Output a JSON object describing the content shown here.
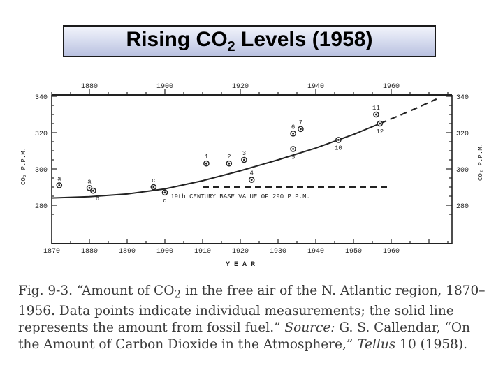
{
  "slide": {
    "title_main": "Rising CO",
    "title_sub": "2",
    "title_tail": " Levels (1958)"
  },
  "chart_data": {
    "type": "scatter",
    "xlim": [
      1870,
      1970
    ],
    "ylim": [
      270,
      345
    ],
    "x_ticks_bottom": [
      1870,
      1880,
      1890,
      1900,
      1910,
      1920,
      1930,
      1940,
      1950,
      1960
    ],
    "x_ticks_top": [
      1880,
      1900,
      1920,
      1940,
      1960
    ],
    "y_ticks": [
      280,
      300,
      320,
      340
    ],
    "ylabel_left": "CO₂  P.P.M.",
    "ylabel_right": "CO₂  P.P.M.",
    "xlabel": "Y E A R",
    "baseline": {
      "value": 290,
      "x_range": [
        1910,
        1960
      ],
      "label": "19th CENTURY BASE VALUE OF 290 P.P.M."
    },
    "fossil_fuel_curve": {
      "x": [
        1870,
        1880,
        1890,
        1900,
        1910,
        1920,
        1930,
        1940,
        1950,
        1957
      ],
      "y": [
        284,
        284.7,
        286.2,
        289,
        293.5,
        299,
        305,
        311.5,
        319,
        325
      ]
    },
    "projection": {
      "x": [
        1957,
        1962,
        1967,
        1972
      ],
      "y": [
        325,
        329.3,
        333.8,
        338.5
      ]
    },
    "points": [
      {
        "x": 1872,
        "y": 291,
        "label": "a"
      },
      {
        "x": 1880,
        "y": 289.5,
        "label": "a"
      },
      {
        "x": 1881,
        "y": 288,
        "label": "b"
      },
      {
        "x": 1897,
        "y": 290,
        "label": "c"
      },
      {
        "x": 1900,
        "y": 287,
        "label": "d"
      },
      {
        "x": 1911,
        "y": 303,
        "label": "1"
      },
      {
        "x": 1917,
        "y": 303,
        "label": "2"
      },
      {
        "x": 1921,
        "y": 305,
        "label": "3"
      },
      {
        "x": 1923,
        "y": 294,
        "label": "4"
      },
      {
        "x": 1934,
        "y": 311,
        "label": "5"
      },
      {
        "x": 1934,
        "y": 319.5,
        "label": "6"
      },
      {
        "x": 1936,
        "y": 322,
        "label": "7"
      },
      {
        "x": 1946,
        "y": 316,
        "label": "10"
      },
      {
        "x": 1956,
        "y": 330,
        "label": "11"
      },
      {
        "x": 1957,
        "y": 325,
        "label": "12"
      }
    ]
  },
  "caption": {
    "part1": "Fig. 9-3.  “Amount of CO",
    "sub": "2",
    "part2": " in the free air of the N. Atlantic region, 1870–1956. Data points indicate individual measurements; the solid line represents the amount from fossil fuel.” ",
    "source_label": "Source:",
    "part3": " G. S. Callendar, “On the Amount of Carbon Dioxide in the Atmosphere,” ",
    "journal": "Tellus",
    "part4": " 10 (1958)."
  }
}
